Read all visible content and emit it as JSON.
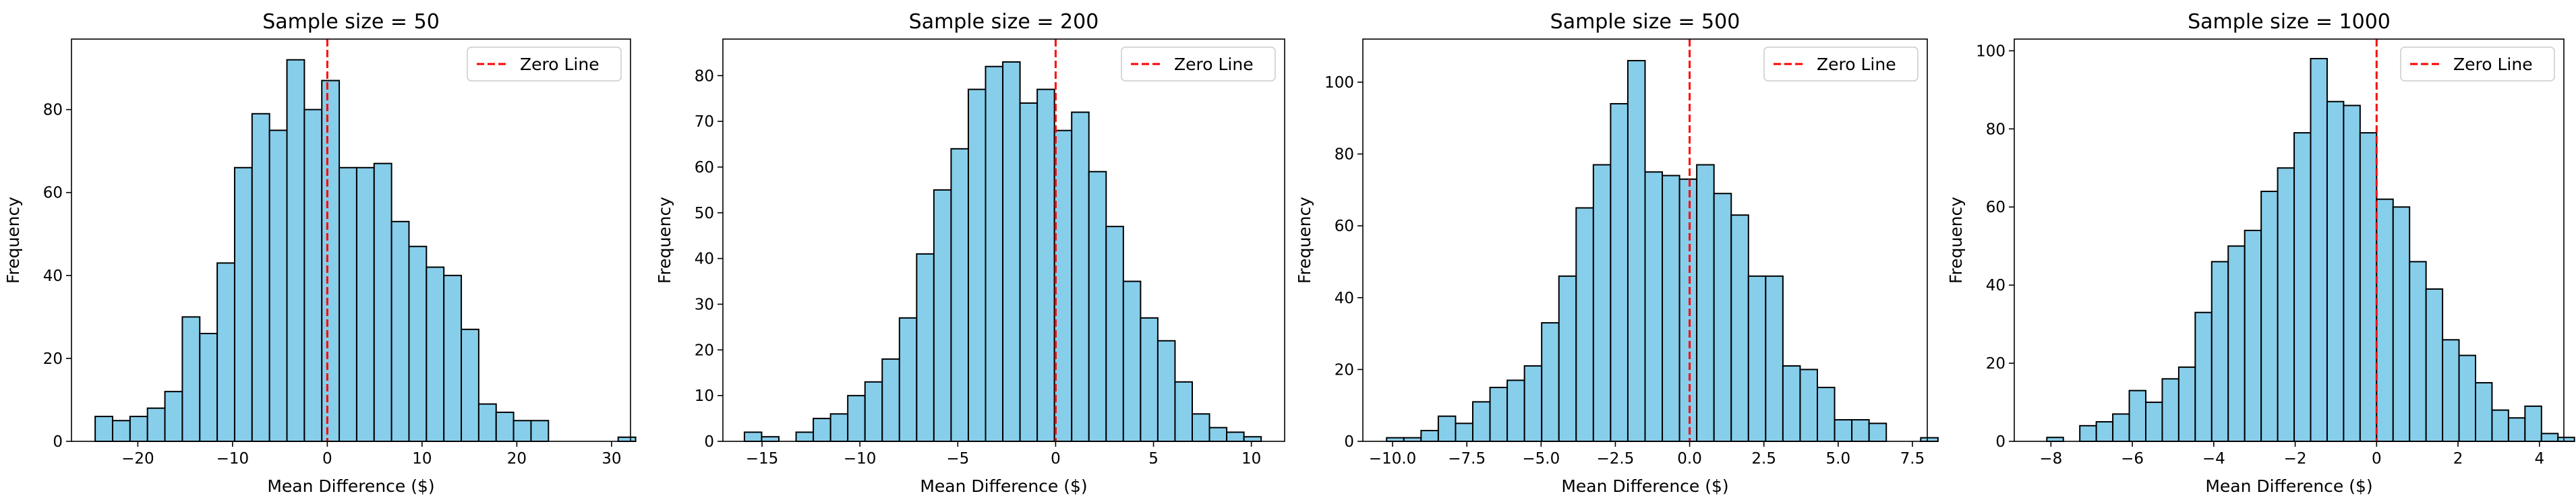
{
  "colors": {
    "bar_fill": "#87ceeb",
    "bar_edge": "#000000",
    "zero_line": "#ff0000"
  },
  "chart_data": [
    {
      "type": "bar",
      "title": "Sample size = 50",
      "xlabel": "Mean Difference ($)",
      "ylabel": "Frequency",
      "xlim": [
        -27,
        32
      ],
      "ylim": [
        0,
        97
      ],
      "xticks": [
        -20,
        -10,
        0,
        10,
        20,
        30
      ],
      "xtick_labels": [
        "−20",
        "−10",
        "0",
        "10",
        "20",
        "30"
      ],
      "yticks": [
        0,
        20,
        40,
        60,
        80
      ],
      "ytick_labels": [
        "0",
        "20",
        "40",
        "60",
        "80"
      ],
      "bin_start": -24.5,
      "bin_width": 1.84,
      "values": [
        6,
        5,
        6,
        8,
        12,
        30,
        26,
        43,
        66,
        79,
        75,
        92,
        80,
        87,
        66,
        66,
        67,
        53,
        47,
        42,
        40,
        27,
        9,
        7,
        5,
        5,
        0,
        0,
        0,
        0,
        1
      ],
      "reference_line": {
        "x": 0,
        "style": "dashed",
        "label": "Zero Line"
      },
      "legend": "upper right",
      "grid": false
    },
    {
      "type": "bar",
      "title": "Sample size = 200",
      "xlabel": "Mean Difference ($)",
      "ylabel": "Frequency",
      "xlim": [
        -17,
        11.7
      ],
      "ylim": [
        0,
        88
      ],
      "xticks": [
        -15,
        -10,
        -5,
        0,
        5,
        10
      ],
      "xtick_labels": [
        "−15",
        "−10",
        "−5",
        "0",
        "5",
        "10"
      ],
      "yticks": [
        0,
        10,
        20,
        30,
        40,
        50,
        60,
        70,
        80
      ],
      "ytick_labels": [
        "0",
        "10",
        "20",
        "30",
        "40",
        "50",
        "60",
        "70",
        "80"
      ],
      "bin_start": -15.9,
      "bin_width": 0.88,
      "values": [
        2,
        1,
        0,
        2,
        5,
        6,
        10,
        13,
        18,
        27,
        41,
        55,
        64,
        77,
        82,
        83,
        74,
        77,
        68,
        72,
        59,
        47,
        35,
        27,
        22,
        13,
        6,
        3,
        2,
        1
      ],
      "reference_line": {
        "x": 0,
        "style": "dashed",
        "label": "Zero Line"
      },
      "legend": "upper right",
      "grid": false
    },
    {
      "type": "bar",
      "title": "Sample size = 500",
      "xlabel": "Mean Difference ($)",
      "ylabel": "Frequency",
      "xlim": [
        -11.0,
        8.0
      ],
      "ylim": [
        0,
        112
      ],
      "xticks": [
        -10.0,
        -7.5,
        -5.0,
        -2.5,
        0.0,
        2.5,
        5.0,
        7.5
      ],
      "xtick_labels": [
        "−10.0",
        "−7.5",
        "−5.0",
        "−2.5",
        "0.0",
        "2.5",
        "5.0",
        "7.5"
      ],
      "yticks": [
        0,
        20,
        40,
        60,
        80,
        100
      ],
      "ytick_labels": [
        "0",
        "20",
        "40",
        "60",
        "80",
        "100"
      ],
      "bin_start": -10.2,
      "bin_width": 0.58,
      "values": [
        1,
        1,
        3,
        7,
        5,
        11,
        15,
        17,
        21,
        33,
        46,
        65,
        77,
        94,
        106,
        75,
        74,
        73,
        77,
        69,
        63,
        46,
        46,
        21,
        20,
        15,
        6,
        6,
        5,
        0,
        0,
        1
      ],
      "reference_line": {
        "x": 0,
        "style": "dashed",
        "label": "Zero Line"
      },
      "legend": "upper right",
      "grid": false
    },
    {
      "type": "bar",
      "title": "Sample size = 1000",
      "xlabel": "Mean Difference ($)",
      "ylabel": "Frequency",
      "xlim": [
        -8.9,
        4.6
      ],
      "ylim": [
        0,
        103
      ],
      "xticks": [
        -8,
        -6,
        -4,
        -2,
        0,
        2,
        4
      ],
      "xtick_labels": [
        "−8",
        "−6",
        "−4",
        "−2",
        "0",
        "2",
        "4"
      ],
      "yticks": [
        0,
        20,
        40,
        60,
        80,
        100
      ],
      "ytick_labels": [
        "0",
        "20",
        "40",
        "60",
        "80",
        "100"
      ],
      "bin_start": -8.1,
      "bin_width": 0.405,
      "values": [
        1,
        0,
        4,
        5,
        7,
        13,
        10,
        16,
        19,
        33,
        46,
        50,
        54,
        64,
        70,
        79,
        98,
        87,
        86,
        79,
        62,
        60,
        46,
        39,
        26,
        22,
        15,
        8,
        6,
        9,
        2,
        1
      ],
      "reference_line": {
        "x": 0,
        "style": "dashed",
        "label": "Zero Line"
      },
      "legend": "upper right",
      "grid": false
    }
  ]
}
